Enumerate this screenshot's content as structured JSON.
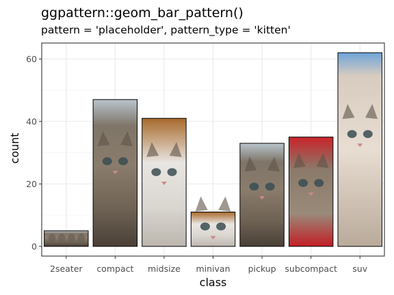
{
  "chart_data": {
    "type": "bar",
    "title": "ggpattern::geom_bar_pattern()",
    "subtitle": "pattern = 'placeholder', pattern_type = 'kitten'",
    "xlabel": "class",
    "ylabel": "count",
    "categories": [
      "2seater",
      "compact",
      "midsize",
      "minivan",
      "pickup",
      "subcompact",
      "suv"
    ],
    "values": [
      5,
      47,
      41,
      11,
      33,
      35,
      62
    ],
    "yticks": [
      0,
      20,
      40,
      60
    ],
    "ylim": [
      -3.1,
      65.1
    ],
    "grid": true,
    "bar_fill_pattern": "kitten-photo",
    "panel_border": "#333333",
    "grid_color": "#ebebeb"
  }
}
